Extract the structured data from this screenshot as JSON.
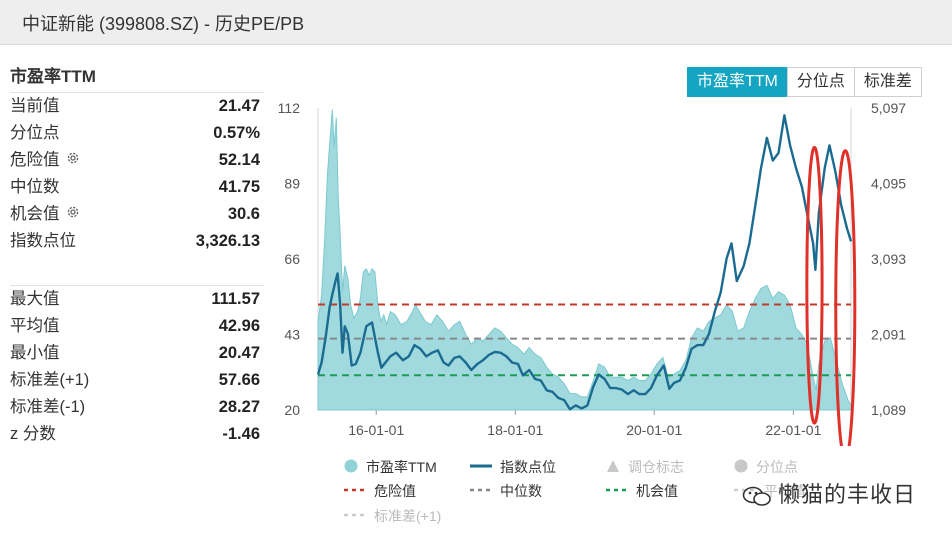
{
  "window": {
    "title": "中证新能 (399808.SZ) - 历史PE/PB"
  },
  "stats": {
    "section_title": "市盈率TTM",
    "current": [
      {
        "label": "当前值",
        "value": "21.47",
        "gear": false
      },
      {
        "label": "分位点",
        "value": "0.57%",
        "gear": false
      },
      {
        "label": "危险值",
        "value": "52.14",
        "gear": true
      },
      {
        "label": "中位数",
        "value": "41.75",
        "gear": false
      },
      {
        "label": "机会值",
        "value": "30.6",
        "gear": true
      },
      {
        "label": "指数点位",
        "value": "3,326.13",
        "gear": false
      }
    ],
    "summary": [
      {
        "label": "最大值",
        "value": "111.57"
      },
      {
        "label": "平均值",
        "value": "42.96"
      },
      {
        "label": "最小值",
        "value": "20.47"
      },
      {
        "label": "标准差(+1)",
        "value": "57.66"
      },
      {
        "label": "标准差(-1)",
        "value": "28.27"
      },
      {
        "label": "z 分数",
        "value": "-1.46"
      }
    ]
  },
  "tabs": [
    {
      "label": "市盈率TTM",
      "active": true
    },
    {
      "label": "分位点",
      "active": false
    },
    {
      "label": "标准差",
      "active": false
    }
  ],
  "chart_data": {
    "type": "area",
    "x_tick_labels": [
      "16-01-01",
      "18-01-01",
      "20-01-01",
      "22-01-01"
    ],
    "x_ticks": [
      "2016-01-01",
      "2018-01-01",
      "2020-01-01",
      "2022-01-01"
    ],
    "x_range": [
      "2015-03-01",
      "2022-10-31"
    ],
    "y_left": {
      "range": [
        20,
        112
      ],
      "ticks": [
        20,
        43,
        66,
        89,
        112
      ]
    },
    "y_right": {
      "range": [
        1089,
        5097
      ],
      "tick_labels": [
        "1,089",
        "2,091",
        "3,093",
        "4,095",
        "5,097"
      ]
    },
    "series": [
      {
        "name": "市盈率TTM",
        "axis": "left",
        "color": "#8fd3d8",
        "points": [
          [
            "2015-03-01",
            47
          ],
          [
            "2015-03-20",
            55
          ],
          [
            "2015-04-05",
            72
          ],
          [
            "2015-04-20",
            92
          ],
          [
            "2015-05-05",
            104
          ],
          [
            "2015-05-15",
            111.5
          ],
          [
            "2015-05-25",
            100
          ],
          [
            "2015-06-05",
            109
          ],
          [
            "2015-06-15",
            85
          ],
          [
            "2015-06-25",
            74
          ],
          [
            "2015-07-08",
            56
          ],
          [
            "2015-07-20",
            64
          ],
          [
            "2015-08-05",
            60
          ],
          [
            "2015-08-20",
            52
          ],
          [
            "2015-09-05",
            48
          ],
          [
            "2015-09-25",
            50
          ],
          [
            "2015-10-10",
            54
          ],
          [
            "2015-10-25",
            62
          ],
          [
            "2015-11-10",
            63
          ],
          [
            "2015-11-25",
            61
          ],
          [
            "2015-12-10",
            63
          ],
          [
            "2015-12-25",
            62
          ],
          [
            "2016-01-10",
            52
          ],
          [
            "2016-01-25",
            47
          ],
          [
            "2016-02-10",
            49
          ],
          [
            "2016-02-25",
            46
          ],
          [
            "2016-03-15",
            50
          ],
          [
            "2016-04-10",
            49
          ],
          [
            "2016-05-10",
            46
          ],
          [
            "2016-06-10",
            47
          ],
          [
            "2016-07-10",
            50
          ],
          [
            "2016-07-25",
            52
          ],
          [
            "2016-08-15",
            50
          ],
          [
            "2016-09-15",
            47
          ],
          [
            "2016-10-15",
            46
          ],
          [
            "2016-11-15",
            49
          ],
          [
            "2016-12-15",
            47
          ],
          [
            "2017-01-15",
            44
          ],
          [
            "2017-02-15",
            46
          ],
          [
            "2017-03-15",
            47
          ],
          [
            "2017-04-15",
            43
          ],
          [
            "2017-05-15",
            40
          ],
          [
            "2017-06-15",
            42
          ],
          [
            "2017-07-15",
            41
          ],
          [
            "2017-08-15",
            43
          ],
          [
            "2017-09-15",
            45
          ],
          [
            "2017-10-15",
            44
          ],
          [
            "2017-11-15",
            42
          ],
          [
            "2017-12-15",
            40
          ],
          [
            "2018-01-15",
            39
          ],
          [
            "2018-02-15",
            37
          ],
          [
            "2018-03-15",
            39
          ],
          [
            "2018-04-15",
            37
          ],
          [
            "2018-05-15",
            36
          ],
          [
            "2018-06-15",
            33
          ],
          [
            "2018-07-15",
            31
          ],
          [
            "2018-08-15",
            30
          ],
          [
            "2018-09-15",
            28
          ],
          [
            "2018-10-15",
            25
          ],
          [
            "2018-11-15",
            25
          ],
          [
            "2018-12-15",
            24
          ],
          [
            "2019-01-15",
            24
          ],
          [
            "2019-02-15",
            29
          ],
          [
            "2019-03-15",
            34
          ],
          [
            "2019-04-15",
            33
          ],
          [
            "2019-05-15",
            30
          ],
          [
            "2019-06-15",
            30
          ],
          [
            "2019-07-15",
            30
          ],
          [
            "2019-08-15",
            29
          ],
          [
            "2019-09-15",
            30
          ],
          [
            "2019-10-15",
            29
          ],
          [
            "2019-11-15",
            29
          ],
          [
            "2019-12-15",
            31
          ],
          [
            "2020-01-15",
            34
          ],
          [
            "2020-02-15",
            36
          ],
          [
            "2020-03-15",
            30
          ],
          [
            "2020-04-15",
            31
          ],
          [
            "2020-05-15",
            32
          ],
          [
            "2020-06-15",
            35
          ],
          [
            "2020-07-15",
            42
          ],
          [
            "2020-08-15",
            45
          ],
          [
            "2020-09-15",
            44
          ],
          [
            "2020-10-15",
            47
          ],
          [
            "2020-11-15",
            48
          ],
          [
            "2020-12-15",
            49
          ],
          [
            "2021-01-15",
            52
          ],
          [
            "2021-02-15",
            50
          ],
          [
            "2021-03-15",
            44
          ],
          [
            "2021-04-15",
            45
          ],
          [
            "2021-05-15",
            50
          ],
          [
            "2021-06-15",
            54
          ],
          [
            "2021-07-15",
            57
          ],
          [
            "2021-08-15",
            58
          ],
          [
            "2021-09-15",
            54
          ],
          [
            "2021-10-15",
            56
          ],
          [
            "2021-11-15",
            55
          ],
          [
            "2021-12-15",
            52
          ],
          [
            "2022-01-15",
            45
          ],
          [
            "2022-02-15",
            43
          ],
          [
            "2022-03-15",
            40
          ],
          [
            "2022-04-15",
            30
          ],
          [
            "2022-05-01",
            26
          ],
          [
            "2022-05-15",
            34
          ],
          [
            "2022-06-15",
            41
          ],
          [
            "2022-07-15",
            42
          ],
          [
            "2022-08-15",
            35
          ],
          [
            "2022-09-15",
            28
          ],
          [
            "2022-10-15",
            23
          ],
          [
            "2022-10-31",
            21.5
          ]
        ]
      },
      {
        "name": "指数点位",
        "axis": "right",
        "color": "#1b6b91",
        "points": [
          [
            "2015-03-01",
            1560
          ],
          [
            "2015-03-20",
            1720
          ],
          [
            "2015-04-10",
            2050
          ],
          [
            "2015-05-01",
            2450
          ],
          [
            "2015-05-15",
            2620
          ],
          [
            "2015-06-01",
            2800
          ],
          [
            "2015-06-12",
            2900
          ],
          [
            "2015-06-25",
            2500
          ],
          [
            "2015-07-08",
            1850
          ],
          [
            "2015-07-20",
            2200
          ],
          [
            "2015-08-05",
            2100
          ],
          [
            "2015-08-25",
            1680
          ],
          [
            "2015-09-15",
            1700
          ],
          [
            "2015-10-10",
            1850
          ],
          [
            "2015-11-10",
            2200
          ],
          [
            "2015-12-10",
            2250
          ],
          [
            "2016-01-10",
            1850
          ],
          [
            "2016-01-28",
            1650
          ],
          [
            "2016-03-15",
            1800
          ],
          [
            "2016-04-15",
            1850
          ],
          [
            "2016-05-20",
            1750
          ],
          [
            "2016-06-20",
            1800
          ],
          [
            "2016-07-20",
            1950
          ],
          [
            "2016-08-20",
            1900
          ],
          [
            "2016-09-20",
            1800
          ],
          [
            "2016-10-20",
            1850
          ],
          [
            "2016-11-20",
            1880
          ],
          [
            "2016-12-20",
            1720
          ],
          [
            "2017-01-15",
            1680
          ],
          [
            "2017-02-15",
            1780
          ],
          [
            "2017-03-15",
            1800
          ],
          [
            "2017-04-15",
            1720
          ],
          [
            "2017-05-15",
            1620
          ],
          [
            "2017-06-15",
            1700
          ],
          [
            "2017-07-15",
            1750
          ],
          [
            "2017-08-15",
            1820
          ],
          [
            "2017-09-15",
            1860
          ],
          [
            "2017-10-15",
            1850
          ],
          [
            "2017-11-15",
            1800
          ],
          [
            "2017-12-15",
            1720
          ],
          [
            "2018-01-15",
            1700
          ],
          [
            "2018-02-10",
            1550
          ],
          [
            "2018-03-15",
            1620
          ],
          [
            "2018-04-15",
            1500
          ],
          [
            "2018-05-15",
            1480
          ],
          [
            "2018-06-15",
            1350
          ],
          [
            "2018-07-15",
            1330
          ],
          [
            "2018-08-15",
            1250
          ],
          [
            "2018-09-15",
            1220
          ],
          [
            "2018-10-15",
            1100
          ],
          [
            "2018-11-15",
            1150
          ],
          [
            "2018-12-15",
            1110
          ],
          [
            "2019-01-15",
            1150
          ],
          [
            "2019-02-15",
            1400
          ],
          [
            "2019-03-15",
            1560
          ],
          [
            "2019-04-15",
            1500
          ],
          [
            "2019-05-15",
            1380
          ],
          [
            "2019-06-15",
            1380
          ],
          [
            "2019-07-15",
            1360
          ],
          [
            "2019-08-15",
            1300
          ],
          [
            "2019-09-15",
            1350
          ],
          [
            "2019-10-15",
            1300
          ],
          [
            "2019-11-15",
            1300
          ],
          [
            "2019-12-15",
            1380
          ],
          [
            "2020-01-15",
            1550
          ],
          [
            "2020-02-20",
            1680
          ],
          [
            "2020-03-20",
            1370
          ],
          [
            "2020-04-15",
            1450
          ],
          [
            "2020-05-15",
            1480
          ],
          [
            "2020-06-15",
            1650
          ],
          [
            "2020-07-15",
            1900
          ],
          [
            "2020-08-15",
            1950
          ],
          [
            "2020-09-15",
            1950
          ],
          [
            "2020-10-15",
            2100
          ],
          [
            "2020-11-15",
            2400
          ],
          [
            "2020-12-15",
            2650
          ],
          [
            "2021-01-15",
            3100
          ],
          [
            "2021-02-10",
            3300
          ],
          [
            "2021-03-10",
            2800
          ],
          [
            "2021-04-15",
            3000
          ],
          [
            "2021-05-15",
            3300
          ],
          [
            "2021-06-15",
            3800
          ],
          [
            "2021-07-15",
            4300
          ],
          [
            "2021-08-15",
            4700
          ],
          [
            "2021-09-15",
            4400
          ],
          [
            "2021-10-15",
            4500
          ],
          [
            "2021-11-15",
            5000
          ],
          [
            "2021-12-15",
            4600
          ],
          [
            "2022-01-15",
            4300
          ],
          [
            "2022-02-15",
            4050
          ],
          [
            "2022-03-10",
            3750
          ],
          [
            "2022-04-15",
            3300
          ],
          [
            "2022-04-27",
            2950
          ],
          [
            "2022-05-15",
            3700
          ],
          [
            "2022-06-15",
            4300
          ],
          [
            "2022-07-10",
            4600
          ],
          [
            "2022-08-10",
            4250
          ],
          [
            "2022-09-10",
            3800
          ],
          [
            "2022-10-10",
            3500
          ],
          [
            "2022-10-31",
            3326
          ]
        ]
      }
    ],
    "reference_lines": [
      {
        "name": "危险值",
        "value": 52.14,
        "color": "#c0392b"
      },
      {
        "name": "中位数",
        "value": 41.75,
        "color": "#888888"
      },
      {
        "name": "机会值",
        "value": 30.6,
        "color": "#1e9b57"
      }
    ],
    "legend": [
      {
        "label": "市盈率TTM",
        "symbol": "circle",
        "color": "#8fd3d8",
        "dim": false
      },
      {
        "label": "指数点位",
        "symbol": "line",
        "color": "#1b6b91",
        "dim": false
      },
      {
        "label": "调仓标志",
        "symbol": "triangle",
        "color": "#c8c8c8",
        "dim": true
      },
      {
        "label": "分位点",
        "symbol": "circle",
        "color": "#c8c8c8",
        "dim": true
      },
      {
        "label": "危险值",
        "symbol": "dash",
        "color": "#c0392b",
        "dim": false
      },
      {
        "label": "中位数",
        "symbol": "dash",
        "color": "#888888",
        "dim": false
      },
      {
        "label": "机会值",
        "symbol": "dash",
        "color": "#1e9b57",
        "dim": false
      },
      {
        "label": "平均值",
        "symbol": "dash",
        "color": "#cccccc",
        "dim": true
      },
      {
        "label": "标准差(+1)",
        "symbol": "dash",
        "color": "#cccccc",
        "dim": true
      }
    ],
    "annotations": [
      {
        "shape": "ellipse",
        "color": "#e0302a",
        "x_center": "2022-04-22",
        "y_center_left": 58,
        "x_half_span_days": 40,
        "y_half_span_left": 42
      },
      {
        "shape": "ellipse",
        "color": "#e0302a",
        "x_center": "2022-10-01",
        "y_center_left": 52,
        "x_half_span_days": 50,
        "y_half_span_left": 47
      }
    ]
  },
  "watermark": {
    "text": "懒猫的丰收日"
  }
}
